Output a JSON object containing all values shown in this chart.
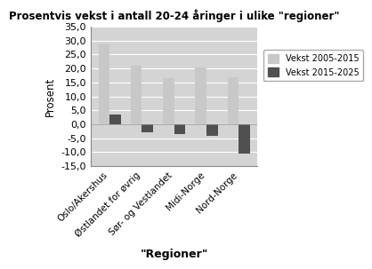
{
  "title": "Prosentvis vekst i antall 20-24 åringer i ulike \"regioner\"",
  "xlabel": "\"Regioner\"",
  "ylabel": "Prosent",
  "categories": [
    "Oslo/Akershus",
    "Østlandet for øvrig",
    "Sør- og Vestlandet",
    "Midi-Norge",
    "Nord-Norge"
  ],
  "vekst_2005_2015": [
    28.5,
    21.0,
    16.5,
    20.5,
    17.0
  ],
  "vekst_2015_2025": [
    3.5,
    -3.0,
    -3.5,
    -4.0,
    -10.5
  ],
  "color_2005_2015": "#c8c8c8",
  "color_2015_2025": "#505050",
  "ylim": [
    -15.0,
    35.0
  ],
  "yticks": [
    -15.0,
    -10.0,
    -5.0,
    0.0,
    5.0,
    10.0,
    15.0,
    20.0,
    25.0,
    30.0,
    35.0
  ],
  "ytick_labels": [
    "-15,0",
    "-10,0",
    "-5,0",
    "0,0",
    "5,0",
    "10,0",
    "15,0",
    "20,0",
    "25,0",
    "30,0",
    "35,0"
  ],
  "legend_label_1": "Vekst 2005-2015",
  "legend_label_2": "Vekst 2015-2025",
  "plot_bg_color": "#d4d4d4",
  "fig_bg_color": "#ffffff",
  "bar_width": 0.35,
  "grid_color": "#ffffff"
}
